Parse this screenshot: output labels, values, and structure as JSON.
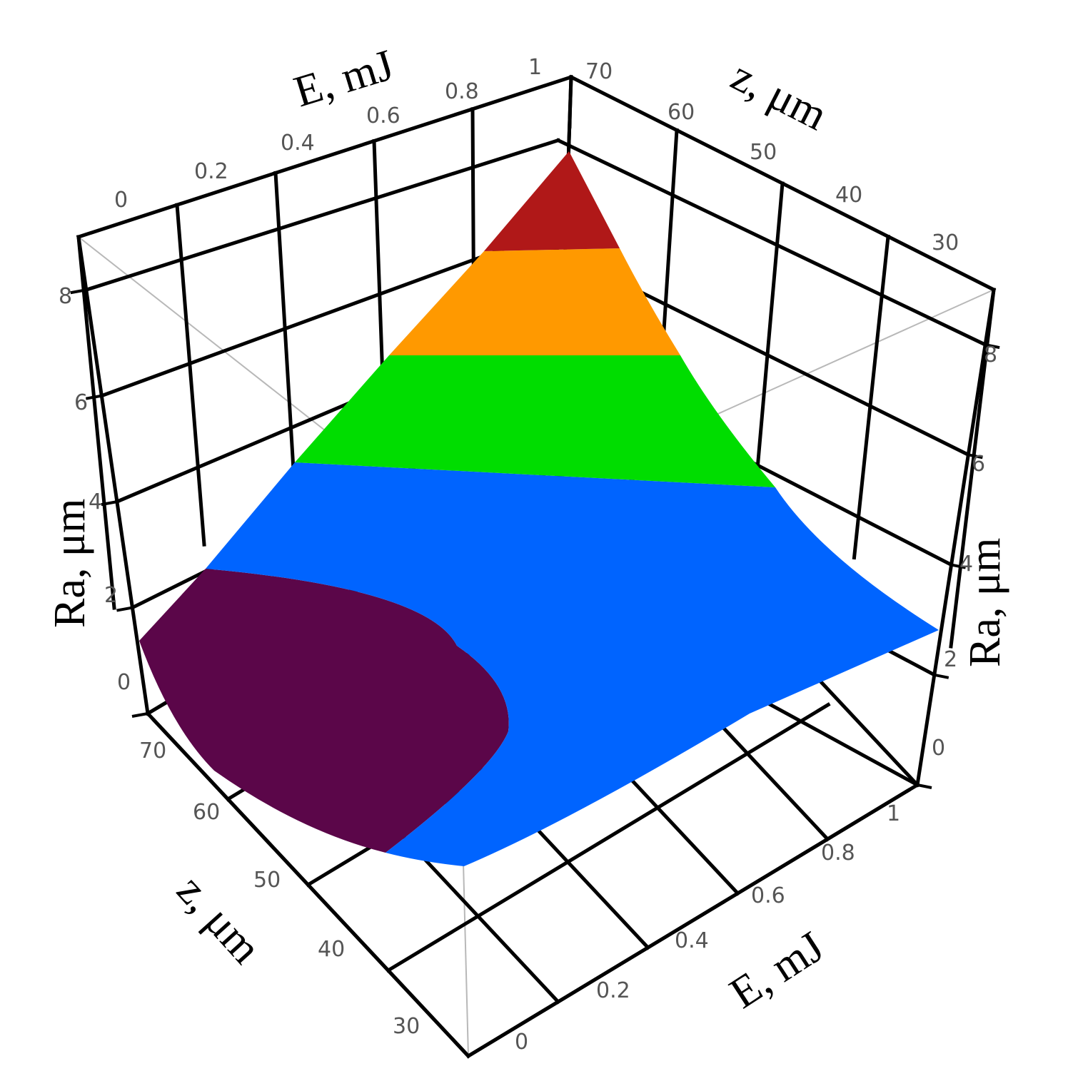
{
  "chart_data": {
    "type": "surface3d",
    "x_axis": {
      "label": "E, mJ",
      "range": [
        0,
        1
      ],
      "ticks": [
        "0",
        "0.2",
        "0.4",
        "0.6",
        "0.8",
        "1"
      ]
    },
    "y_axis": {
      "label": "z, μm",
      "range": [
        30,
        70
      ],
      "ticks": [
        "30",
        "40",
        "50",
        "60",
        "70"
      ]
    },
    "z_axis": {
      "label": "Ra, μm",
      "range": [
        0,
        9
      ],
      "ticks": [
        "0",
        "2",
        "4",
        "6",
        "8"
      ]
    },
    "corner_values": [
      {
        "E": 0,
        "z": 70,
        "Ra": 1.3
      },
      {
        "E": 1,
        "z": 70,
        "Ra": 8.2
      },
      {
        "E": 1,
        "z": 30,
        "Ra": 2.5
      },
      {
        "E": 0,
        "z": 30,
        "Ra": 1.0
      }
    ],
    "contour_levels": [
      {
        "from": 0,
        "to": 1.5,
        "color": "#5b0649"
      },
      {
        "from": 1.5,
        "to": 4,
        "color": "#0064ff"
      },
      {
        "from": 4,
        "to": 6,
        "color": "#00dd00"
      },
      {
        "from": 6,
        "to": 7.6,
        "color": "#ff9900"
      },
      {
        "from": 7.6,
        "to": 9,
        "color": "#b01818"
      }
    ],
    "grid": true
  }
}
